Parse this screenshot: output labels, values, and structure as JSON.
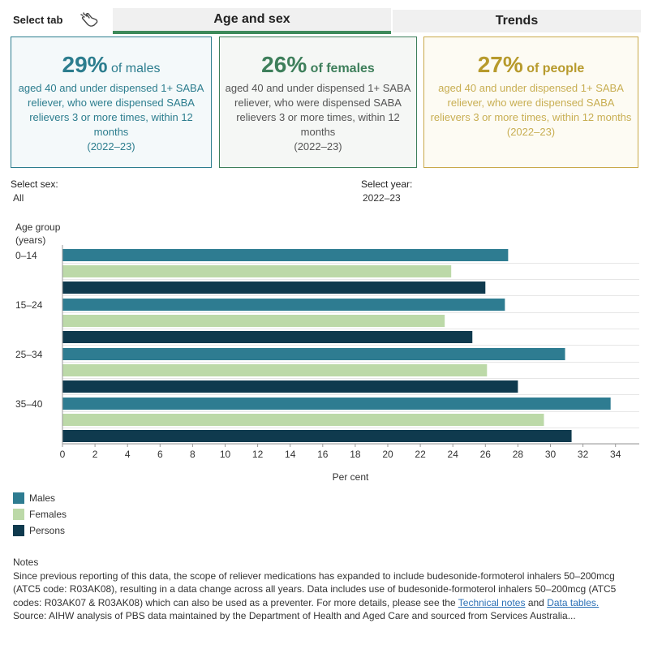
{
  "tabs": {
    "select_label": "Select tab",
    "age_sex": "Age and sex",
    "trends": "Trends"
  },
  "cards": {
    "males": {
      "pct": "29%",
      "of": "of males",
      "desc": "aged 40 and under dispensed 1+ SABA reliever, who were dispensed SABA relievers 3 or more times, within 12 months",
      "year": "(2022–23)"
    },
    "females": {
      "pct": "26%",
      "of": "of females",
      "desc": "aged 40 and under dispensed 1+ SABA reliever, who were dispensed SABA relievers 3 or more times, within 12 months",
      "year": "(2022–23)"
    },
    "people": {
      "pct": "27%",
      "of": "of people",
      "desc": "aged 40 and under dispensed 1+ SABA reliever, who were dispensed SABA relievers 3 or more times, within 12 months",
      "year": "(2022–23)"
    }
  },
  "filters": {
    "sex_label": "Select sex:",
    "sex_value": "All",
    "year_label": "Select year:",
    "year_value": "2022–23"
  },
  "chart_data": {
    "type": "bar",
    "orientation": "horizontal",
    "title": "",
    "ylabel": "Age group (years)",
    "xlabel": "Per cent",
    "categories": [
      "0–14",
      "15–24",
      "25–34",
      "35–40"
    ],
    "series": [
      {
        "name": "Males",
        "color": "#2e7c91",
        "values": [
          27.4,
          27.2,
          30.9,
          33.7
        ]
      },
      {
        "name": "Females",
        "color": "#bcd9a8",
        "values": [
          23.9,
          23.5,
          26.1,
          29.6
        ]
      },
      {
        "name": "Persons",
        "color": "#0f3a4e",
        "values": [
          26.0,
          25.2,
          28.0,
          31.3
        ]
      }
    ],
    "xlim": [
      0,
      35
    ],
    "xticks": [
      0,
      2,
      4,
      6,
      8,
      10,
      12,
      14,
      16,
      18,
      20,
      22,
      24,
      26,
      28,
      30,
      32,
      34
    ],
    "legend_position": "bottom-left"
  },
  "notes": {
    "heading": "Notes",
    "text1": "Since previous reporting of this data, the scope of reliever medications has expanded to include budesonide-formoterol inhalers 50–200mcg (ATC5 code: R03AK08), resulting in a data change across all years. Data includes use of budesonide-formoterol inhalers 50–200mcg (ATC5 codes: R03AK07 & R03AK08) which can also be used as a preventer.  For more details, please see the ",
    "link1": "Technical notes",
    "text2": " and ",
    "link2": "Data tables.",
    "source": "Source: AIHW analysis of PBS data maintained by the Department of Health and Aged Care and sourced from Services Australia..."
  }
}
